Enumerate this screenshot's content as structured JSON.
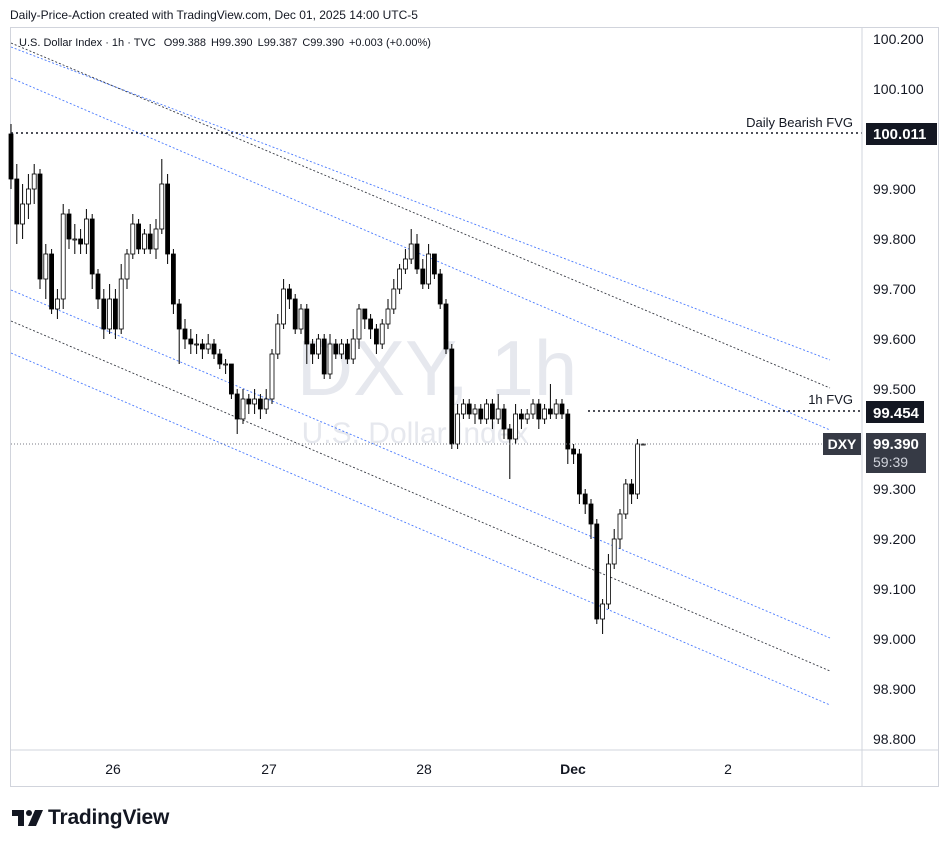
{
  "header": {
    "text": "Daily-Price-Action created with TradingView.com, Dec 01, 2025 14:00 UTC-5"
  },
  "legend": {
    "symbol_desc": "U.S. Dollar Index · 1h · TVC",
    "o_label": "O",
    "o": "99.388",
    "h_label": "H",
    "h": "99.390",
    "l_label": "L",
    "l": "99.387",
    "c_label": "C",
    "c": "99.390",
    "change": "+0.003 (+0.00%)"
  },
  "watermark": {
    "line1": "DXY, 1h",
    "line2": "U.S. Dollar Index"
  },
  "annotations": {
    "daily_fvg_label": "Daily Bearish FVG",
    "hourly_fvg_label": "1h FVG"
  },
  "price_tags": {
    "daily_fvg": "100.011",
    "hourly_fvg": "99.454",
    "symbol": "DXY",
    "last": "99.390",
    "countdown": "59:39"
  },
  "footer": {
    "brand": "TradingView"
  },
  "colors": {
    "candle_up_body": "#ffffff",
    "candle_down_body": "#000000",
    "candle_outline": "#000000",
    "channel_mid": "#131722",
    "channel_bands": "#2962ff",
    "tag_bg": "#131722",
    "tag_last_bg": "#363a45"
  },
  "chart_data": {
    "type": "candlestick",
    "symbol": "DXY",
    "timeframe": "1h",
    "ylim": [
      98.75,
      100.25
    ],
    "y_ticks": [
      "100.200",
      "100.100",
      "99.900",
      "99.800",
      "99.700",
      "99.600",
      "99.500",
      "99.300",
      "99.200",
      "99.100",
      "99.000",
      "98.900",
      "98.800"
    ],
    "x_ticks": [
      {
        "label": "26",
        "bold": false
      },
      {
        "label": "27",
        "bold": false
      },
      {
        "label": "28",
        "bold": false
      },
      {
        "label": "Dec",
        "bold": true
      },
      {
        "label": "2",
        "bold": false
      }
    ],
    "horizontal_levels": [
      {
        "label": "Daily Bearish FVG",
        "value": 100.011
      },
      {
        "label": "1h FVG",
        "value": 99.454
      }
    ],
    "last_price": 99.39,
    "candles": [
      [
        100.01,
        99.92,
        100.03,
        99.9
      ],
      [
        99.92,
        99.83,
        99.95,
        99.79
      ],
      [
        99.83,
        99.87,
        99.91,
        99.8
      ],
      [
        99.87,
        99.9,
        99.93,
        99.84
      ],
      [
        99.9,
        99.93,
        99.95,
        99.87
      ],
      [
        99.93,
        99.72,
        99.94,
        99.7
      ],
      [
        99.72,
        99.77,
        99.79,
        99.68
      ],
      [
        99.77,
        99.66,
        99.78,
        99.65
      ],
      [
        99.66,
        99.68,
        99.7,
        99.64
      ],
      [
        99.68,
        99.85,
        99.87,
        99.66
      ],
      [
        99.85,
        99.8,
        99.86,
        99.78
      ],
      [
        99.8,
        99.8,
        99.83,
        99.77
      ],
      [
        99.8,
        99.79,
        99.82,
        99.77
      ],
      [
        99.79,
        99.84,
        99.86,
        99.77
      ],
      [
        99.84,
        99.73,
        99.85,
        99.7
      ],
      [
        99.73,
        99.68,
        99.74,
        99.66
      ],
      [
        99.68,
        99.62,
        99.7,
        99.6
      ],
      [
        99.62,
        99.68,
        99.71,
        99.61
      ],
      [
        99.68,
        99.62,
        99.7,
        99.6
      ],
      [
        99.62,
        99.72,
        99.75,
        99.61
      ],
      [
        99.72,
        99.77,
        99.78,
        99.7
      ],
      [
        99.77,
        99.83,
        99.85,
        99.76
      ],
      [
        99.83,
        99.78,
        99.84,
        99.77
      ],
      [
        99.78,
        99.81,
        99.82,
        99.77
      ],
      [
        99.81,
        99.78,
        99.83,
        99.77
      ],
      [
        99.78,
        99.82,
        99.84,
        99.76
      ],
      [
        99.82,
        99.91,
        99.96,
        99.81
      ],
      [
        99.91,
        99.77,
        99.93,
        99.75
      ],
      [
        99.77,
        99.67,
        99.78,
        99.65
      ],
      [
        99.67,
        99.62,
        99.68,
        99.55
      ],
      [
        99.62,
        99.6,
        99.64,
        99.58
      ],
      [
        99.6,
        99.59,
        99.62,
        99.57
      ],
      [
        99.59,
        99.59,
        99.61,
        99.57
      ],
      [
        99.59,
        99.58,
        99.6,
        99.56
      ],
      [
        99.58,
        99.59,
        99.61,
        99.57
      ],
      [
        99.59,
        99.57,
        99.6,
        99.56
      ],
      [
        99.57,
        99.55,
        99.58,
        99.54
      ],
      [
        99.55,
        99.55,
        99.56,
        99.53
      ],
      [
        99.55,
        99.49,
        99.5,
        99.48
      ],
      [
        99.49,
        99.44,
        99.5,
        99.41
      ],
      [
        99.44,
        99.48,
        99.5,
        99.43
      ],
      [
        99.48,
        99.47,
        99.49,
        99.45
      ],
      [
        99.47,
        99.48,
        99.5,
        99.45
      ],
      [
        99.48,
        99.46,
        99.49,
        99.44
      ],
      [
        99.46,
        99.48,
        99.5,
        99.45
      ],
      [
        99.48,
        99.57,
        99.58,
        99.47
      ],
      [
        99.57,
        99.63,
        99.65,
        99.56
      ],
      [
        99.63,
        99.7,
        99.72,
        99.62
      ],
      [
        99.7,
        99.68,
        99.71,
        99.66
      ],
      [
        99.68,
        99.62,
        99.69,
        99.61
      ],
      [
        99.62,
        99.66,
        99.67,
        99.61
      ],
      [
        99.66,
        99.59,
        99.67,
        99.55
      ],
      [
        99.59,
        99.57,
        99.6,
        99.55
      ],
      [
        99.57,
        99.6,
        99.61,
        99.56
      ],
      [
        99.6,
        99.53,
        99.61,
        99.52
      ],
      [
        99.53,
        99.59,
        99.61,
        99.52
      ],
      [
        99.59,
        99.57,
        99.6,
        99.56
      ],
      [
        99.57,
        99.59,
        99.6,
        99.56
      ],
      [
        99.59,
        99.56,
        99.6,
        99.55
      ],
      [
        99.56,
        99.6,
        99.62,
        99.55
      ],
      [
        99.6,
        99.66,
        99.67,
        99.58
      ],
      [
        99.66,
        99.64,
        99.66,
        99.62
      ],
      [
        99.64,
        99.62,
        99.65,
        99.6
      ],
      [
        99.62,
        99.59,
        99.63,
        99.57
      ],
      [
        99.59,
        99.63,
        99.64,
        99.58
      ],
      [
        99.63,
        99.66,
        99.68,
        99.62
      ],
      [
        99.66,
        99.7,
        99.72,
        99.65
      ],
      [
        99.7,
        99.74,
        99.75,
        99.69
      ],
      [
        99.74,
        99.76,
        99.78,
        99.73
      ],
      [
        99.76,
        99.79,
        99.82,
        99.75
      ],
      [
        99.79,
        99.74,
        99.81,
        99.73
      ],
      [
        99.74,
        99.71,
        99.76,
        99.7
      ],
      [
        99.71,
        99.77,
        99.79,
        99.7
      ],
      [
        99.77,
        99.73,
        99.77,
        99.72
      ],
      [
        99.73,
        99.67,
        99.74,
        99.66
      ],
      [
        99.67,
        99.58,
        99.68,
        99.57
      ],
      [
        99.58,
        99.39,
        99.59,
        99.38
      ],
      [
        99.39,
        99.45,
        99.47,
        99.38
      ],
      [
        99.45,
        99.47,
        99.48,
        99.44
      ],
      [
        99.47,
        99.45,
        99.48,
        99.44
      ],
      [
        99.45,
        99.46,
        99.47,
        99.43
      ],
      [
        99.46,
        99.44,
        99.47,
        99.43
      ],
      [
        99.44,
        99.47,
        99.48,
        99.43
      ],
      [
        99.47,
        99.44,
        99.48,
        99.42
      ],
      [
        99.44,
        99.46,
        99.49,
        99.43
      ],
      [
        99.46,
        99.42,
        99.47,
        99.4
      ],
      [
        99.42,
        99.4,
        99.43,
        99.32
      ],
      [
        99.4,
        99.45,
        99.47,
        99.39
      ],
      [
        99.45,
        99.44,
        99.46,
        99.42
      ],
      [
        99.44,
        99.45,
        99.46,
        99.43
      ],
      [
        99.45,
        99.47,
        99.48,
        99.44
      ],
      [
        99.47,
        99.44,
        99.48,
        99.42
      ],
      [
        99.44,
        99.46,
        99.47,
        99.43
      ],
      [
        99.46,
        99.45,
        99.51,
        99.44
      ],
      [
        99.45,
        99.47,
        99.48,
        99.44
      ],
      [
        99.47,
        99.45,
        99.48,
        99.44
      ],
      [
        99.45,
        99.38,
        99.46,
        99.35
      ],
      [
        99.38,
        99.37,
        99.39,
        99.35
      ],
      [
        99.37,
        99.29,
        99.38,
        99.27
      ],
      [
        99.29,
        99.27,
        99.3,
        99.25
      ],
      [
        99.27,
        99.23,
        99.28,
        99.2
      ],
      [
        99.23,
        99.04,
        99.24,
        99.03
      ],
      [
        99.04,
        99.07,
        99.08,
        99.01
      ],
      [
        99.07,
        99.15,
        99.17,
        99.06
      ],
      [
        99.15,
        99.2,
        99.22,
        99.14
      ],
      [
        99.2,
        99.25,
        99.26,
        99.18
      ],
      [
        99.25,
        99.31,
        99.32,
        99.24
      ],
      [
        99.31,
        99.29,
        99.32,
        99.27
      ],
      [
        99.29,
        99.39,
        99.4,
        99.28
      ],
      [
        99.39,
        99.39,
        99.39,
        99.39
      ]
    ]
  }
}
